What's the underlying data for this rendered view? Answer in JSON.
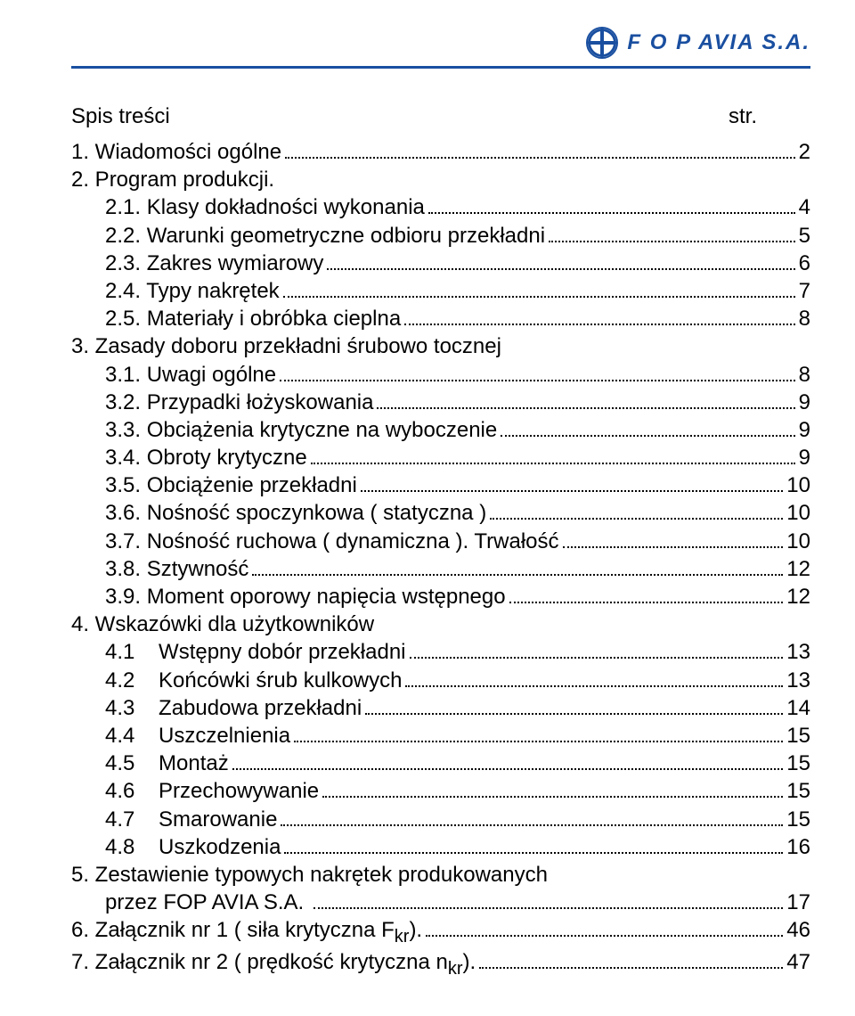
{
  "logo": {
    "text": "F O P AVIA S.A."
  },
  "toc": {
    "title": "Spis treści",
    "str_label": "str.",
    "entries": [
      {
        "label": "1. Wiadomości ogólne",
        "page": "2",
        "indent": 0
      },
      {
        "label": "2. Program produkcji.",
        "page": "",
        "indent": 0,
        "noDots": true,
        "noPage": true
      },
      {
        "label": "2.1. Klasy dokładności wykonania",
        "page": "4",
        "indent": 1
      },
      {
        "label": "2.2. Warunki geometryczne odbioru przekładni",
        "page": " 5",
        "indent": 1
      },
      {
        "label": "2.3. Zakres wymiarowy",
        "page": "6",
        "indent": 1
      },
      {
        "label": "2.4. Typy nakrętek",
        "page": "7",
        "indent": 1
      },
      {
        "label": "2.5. Materiały i obróbka cieplna",
        "page": "8",
        "indent": 1
      },
      {
        "label": "3. Zasady doboru przekładni śrubowo tocznej",
        "page": "",
        "indent": 0,
        "noDots": true,
        "noPage": true
      },
      {
        "label": "3.1. Uwagi ogólne",
        "page": "8",
        "indent": 1
      },
      {
        "label": "3.2. Przypadki łożyskowania",
        "page": "9",
        "indent": 1
      },
      {
        "label": "3.3. Obciążenia krytyczne na wyboczenie",
        "page": "9",
        "indent": 1
      },
      {
        "label": "3.4. Obroty krytyczne",
        "page": "9",
        "indent": 1
      },
      {
        "label": "3.5. Obciążenie przekładni",
        "page": "10",
        "indent": 1
      },
      {
        "label": "3.6. Nośność spoczynkowa ( statyczna )",
        "page": "10",
        "indent": 1
      },
      {
        "label": "3.7. Nośność ruchowa ( dynamiczna ). Trwałość",
        "page": "10",
        "indent": 1
      },
      {
        "label": "3.8. Sztywność",
        "page": "12",
        "indent": 1
      },
      {
        "label": "3.9. Moment oporowy napięcia wstępnego",
        "page": "12",
        "indent": 1
      },
      {
        "label": "4. Wskazówki dla użytkowników",
        "page": "",
        "indent": 0,
        "noDots": true,
        "noPage": true
      },
      {
        "label": "4.1    Wstępny dobór przekładni",
        "page": "13",
        "indent": 1
      },
      {
        "label": "4.2    Końcówki śrub kulkowych",
        "page": "13",
        "indent": 1
      },
      {
        "label": "4.3    Zabudowa przekładni",
        "page": "14",
        "indent": 1
      },
      {
        "label": "4.4    Uszczelnienia",
        "page": "15",
        "indent": 1
      },
      {
        "label": "4.5    Montaż",
        "page": "15",
        "indent": 1
      },
      {
        "label": "4.6    Przechowywanie",
        "page": "15",
        "indent": 1
      },
      {
        "label": "4.7    Smarowanie",
        "page": "15",
        "indent": 1
      },
      {
        "label": "4.8    Uszkodzenia",
        "page": "16",
        "indent": 1
      },
      {
        "label": "5. Zestawienie typowych nakrętek produkowanych",
        "page": "",
        "indent": 0,
        "noDots": true,
        "noPage": true
      },
      {
        "label": "przez FOP AVIA S.A. ",
        "page": "17",
        "indent": 1
      },
      {
        "label": "6. Załącznik nr 1 ( siła krytyczna F",
        "sub": "kr",
        "after": ").",
        "page": "46",
        "indent": 0
      },
      {
        "label": "7. Załącznik nr 2 ( prędkość krytyczna n",
        "sub": "kr",
        "after": ").",
        "page": "47",
        "indent": 0
      }
    ]
  },
  "colors": {
    "accent": "#1a4fa0",
    "text": "#000000",
    "background": "#ffffff"
  },
  "typography": {
    "body_fontsize": 24,
    "logo_fontsize": 24,
    "font_family": "Arial"
  }
}
